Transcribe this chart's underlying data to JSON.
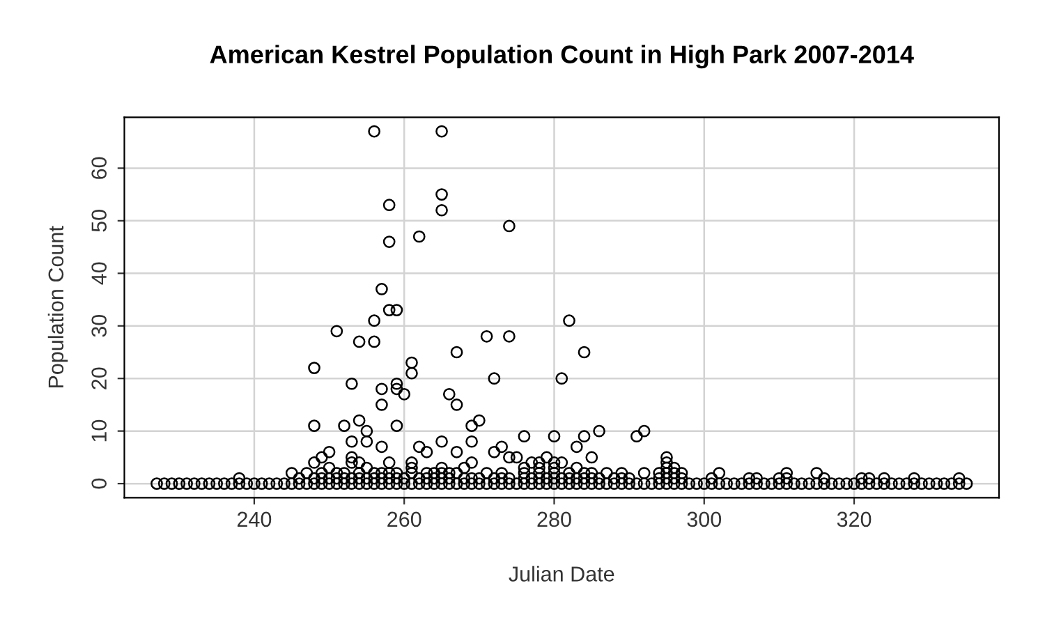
{
  "chart_data": {
    "type": "scatter",
    "title": "American Kestrel Population Count in High Park 2007-2014",
    "xlabel": "Julian Date",
    "ylabel": "Population Count",
    "x": [
      227,
      228,
      229,
      230,
      231,
      232,
      233,
      234,
      235,
      236,
      237,
      238,
      239,
      240,
      241,
      242,
      243,
      244,
      245,
      246,
      247,
      248,
      249,
      250,
      251,
      252,
      253,
      254,
      255,
      256,
      257,
      258,
      259,
      260,
      261,
      262,
      263,
      264,
      265,
      266,
      267,
      268,
      269,
      270,
      271,
      272,
      273,
      274,
      275,
      276,
      277,
      278,
      279,
      280,
      281,
      282,
      283,
      284,
      285,
      286,
      287,
      288,
      289,
      290,
      291,
      292,
      293,
      294,
      295,
      296,
      297,
      298,
      299,
      300,
      301,
      302,
      303,
      304,
      305,
      306,
      307,
      308,
      309,
      310,
      311,
      312,
      313,
      314,
      315,
      316,
      317,
      318,
      319,
      320,
      321,
      322,
      323,
      324,
      325,
      326,
      327,
      328,
      329,
      330,
      331,
      332,
      333,
      334,
      335,
      238,
      246,
      248,
      249,
      250,
      251,
      252,
      253,
      254,
      255,
      256,
      257,
      258,
      259,
      260,
      262,
      263,
      264,
      265,
      266,
      268,
      269,
      270,
      272,
      273,
      274,
      276,
      277,
      278,
      279,
      280,
      281,
      282,
      283,
      284,
      285,
      286,
      288,
      289,
      290,
      294,
      295,
      296,
      297,
      301,
      306,
      307,
      310,
      311,
      316,
      321,
      322,
      324,
      328,
      334,
      245,
      247,
      249,
      251,
      252,
      254,
      256,
      257,
      258,
      259,
      261,
      263,
      264,
      265,
      266,
      267,
      271,
      273,
      276,
      278,
      280,
      282,
      284,
      285,
      287,
      289,
      292,
      294,
      295,
      296,
      297,
      302,
      311,
      315,
      250,
      255,
      261,
      265,
      268,
      276,
      278,
      280,
      283,
      295,
      296,
      256,
      265,
      258,
      265,
      265,
      274,
      262,
      258,
      257,
      258,
      259,
      256,
      282,
      251,
      254,
      256,
      271,
      274,
      267,
      284,
      261,
      248,
      261,
      272,
      281,
      253,
      259,
      257,
      259,
      260,
      266,
      257,
      267,
      254,
      270,
      248,
      252,
      259,
      269,
      255,
      286,
      292,
      276,
      280,
      284,
      291,
      253,
      255,
      265,
      269,
      257,
      262,
      273,
      283,
      250,
      263,
      267,
      272,
      249,
      253,
      274,
      275,
      279,
      285,
      295,
      248,
      253,
      254,
      258,
      261,
      269,
      277,
      278,
      280,
      281,
      295
    ],
    "values": [
      0,
      0,
      0,
      0,
      0,
      0,
      0,
      0,
      0,
      0,
      0,
      0,
      0,
      0,
      0,
      0,
      0,
      0,
      0,
      0,
      0,
      0,
      0,
      0,
      0,
      0,
      0,
      0,
      0,
      0,
      0,
      0,
      0,
      0,
      0,
      0,
      0,
      0,
      0,
      0,
      0,
      0,
      0,
      0,
      0,
      0,
      0,
      0,
      0,
      0,
      0,
      0,
      0,
      0,
      0,
      0,
      0,
      0,
      0,
      0,
      0,
      0,
      0,
      0,
      0,
      0,
      0,
      0,
      0,
      0,
      0,
      0,
      0,
      0,
      0,
      0,
      0,
      0,
      0,
      0,
      0,
      0,
      0,
      0,
      0,
      0,
      0,
      0,
      0,
      0,
      0,
      0,
      0,
      0,
      0,
      0,
      0,
      0,
      0,
      0,
      0,
      0,
      0,
      0,
      0,
      0,
      0,
      0,
      0,
      1,
      1,
      1,
      1,
      1,
      1,
      1,
      1,
      1,
      1,
      1,
      1,
      1,
      1,
      1,
      1,
      1,
      1,
      1,
      1,
      1,
      1,
      1,
      1,
      1,
      1,
      1,
      1,
      1,
      1,
      1,
      1,
      1,
      1,
      1,
      1,
      1,
      1,
      1,
      1,
      1,
      1,
      1,
      1,
      1,
      1,
      1,
      1,
      1,
      1,
      1,
      1,
      1,
      1,
      1,
      2,
      2,
      2,
      2,
      2,
      2,
      2,
      2,
      2,
      2,
      2,
      2,
      2,
      2,
      2,
      2,
      2,
      2,
      2,
      2,
      2,
      2,
      2,
      2,
      2,
      2,
      2,
      2,
      2,
      2,
      2,
      2,
      2,
      2,
      3,
      3,
      3,
      3,
      3,
      3,
      3,
      3,
      3,
      3,
      3,
      67,
      67,
      53,
      55,
      52,
      49,
      47,
      46,
      37,
      33,
      33,
      31,
      31,
      29,
      27,
      27,
      28,
      28,
      25,
      25,
      23,
      22,
      21,
      20,
      20,
      19,
      19,
      18,
      18,
      17,
      17,
      15,
      15,
      12,
      12,
      11,
      11,
      11,
      11,
      10,
      10,
      10,
      9,
      9,
      9,
      9,
      8,
      8,
      8,
      8,
      7,
      7,
      7,
      7,
      6,
      6,
      6,
      6,
      5,
      5,
      5,
      5,
      5,
      5,
      5,
      4,
      4,
      4,
      4,
      4,
      4,
      4,
      4,
      4,
      4,
      4
    ],
    "color": "#000000",
    "marker": "circle",
    "xlim": [
      222.68,
      339.32
    ],
    "ylim": [
      -2.68,
      69.68
    ],
    "xticks": [
      240,
      260,
      280,
      300,
      320
    ],
    "yticks": [
      0,
      10,
      20,
      30,
      40,
      50,
      60
    ],
    "grid": true
  }
}
